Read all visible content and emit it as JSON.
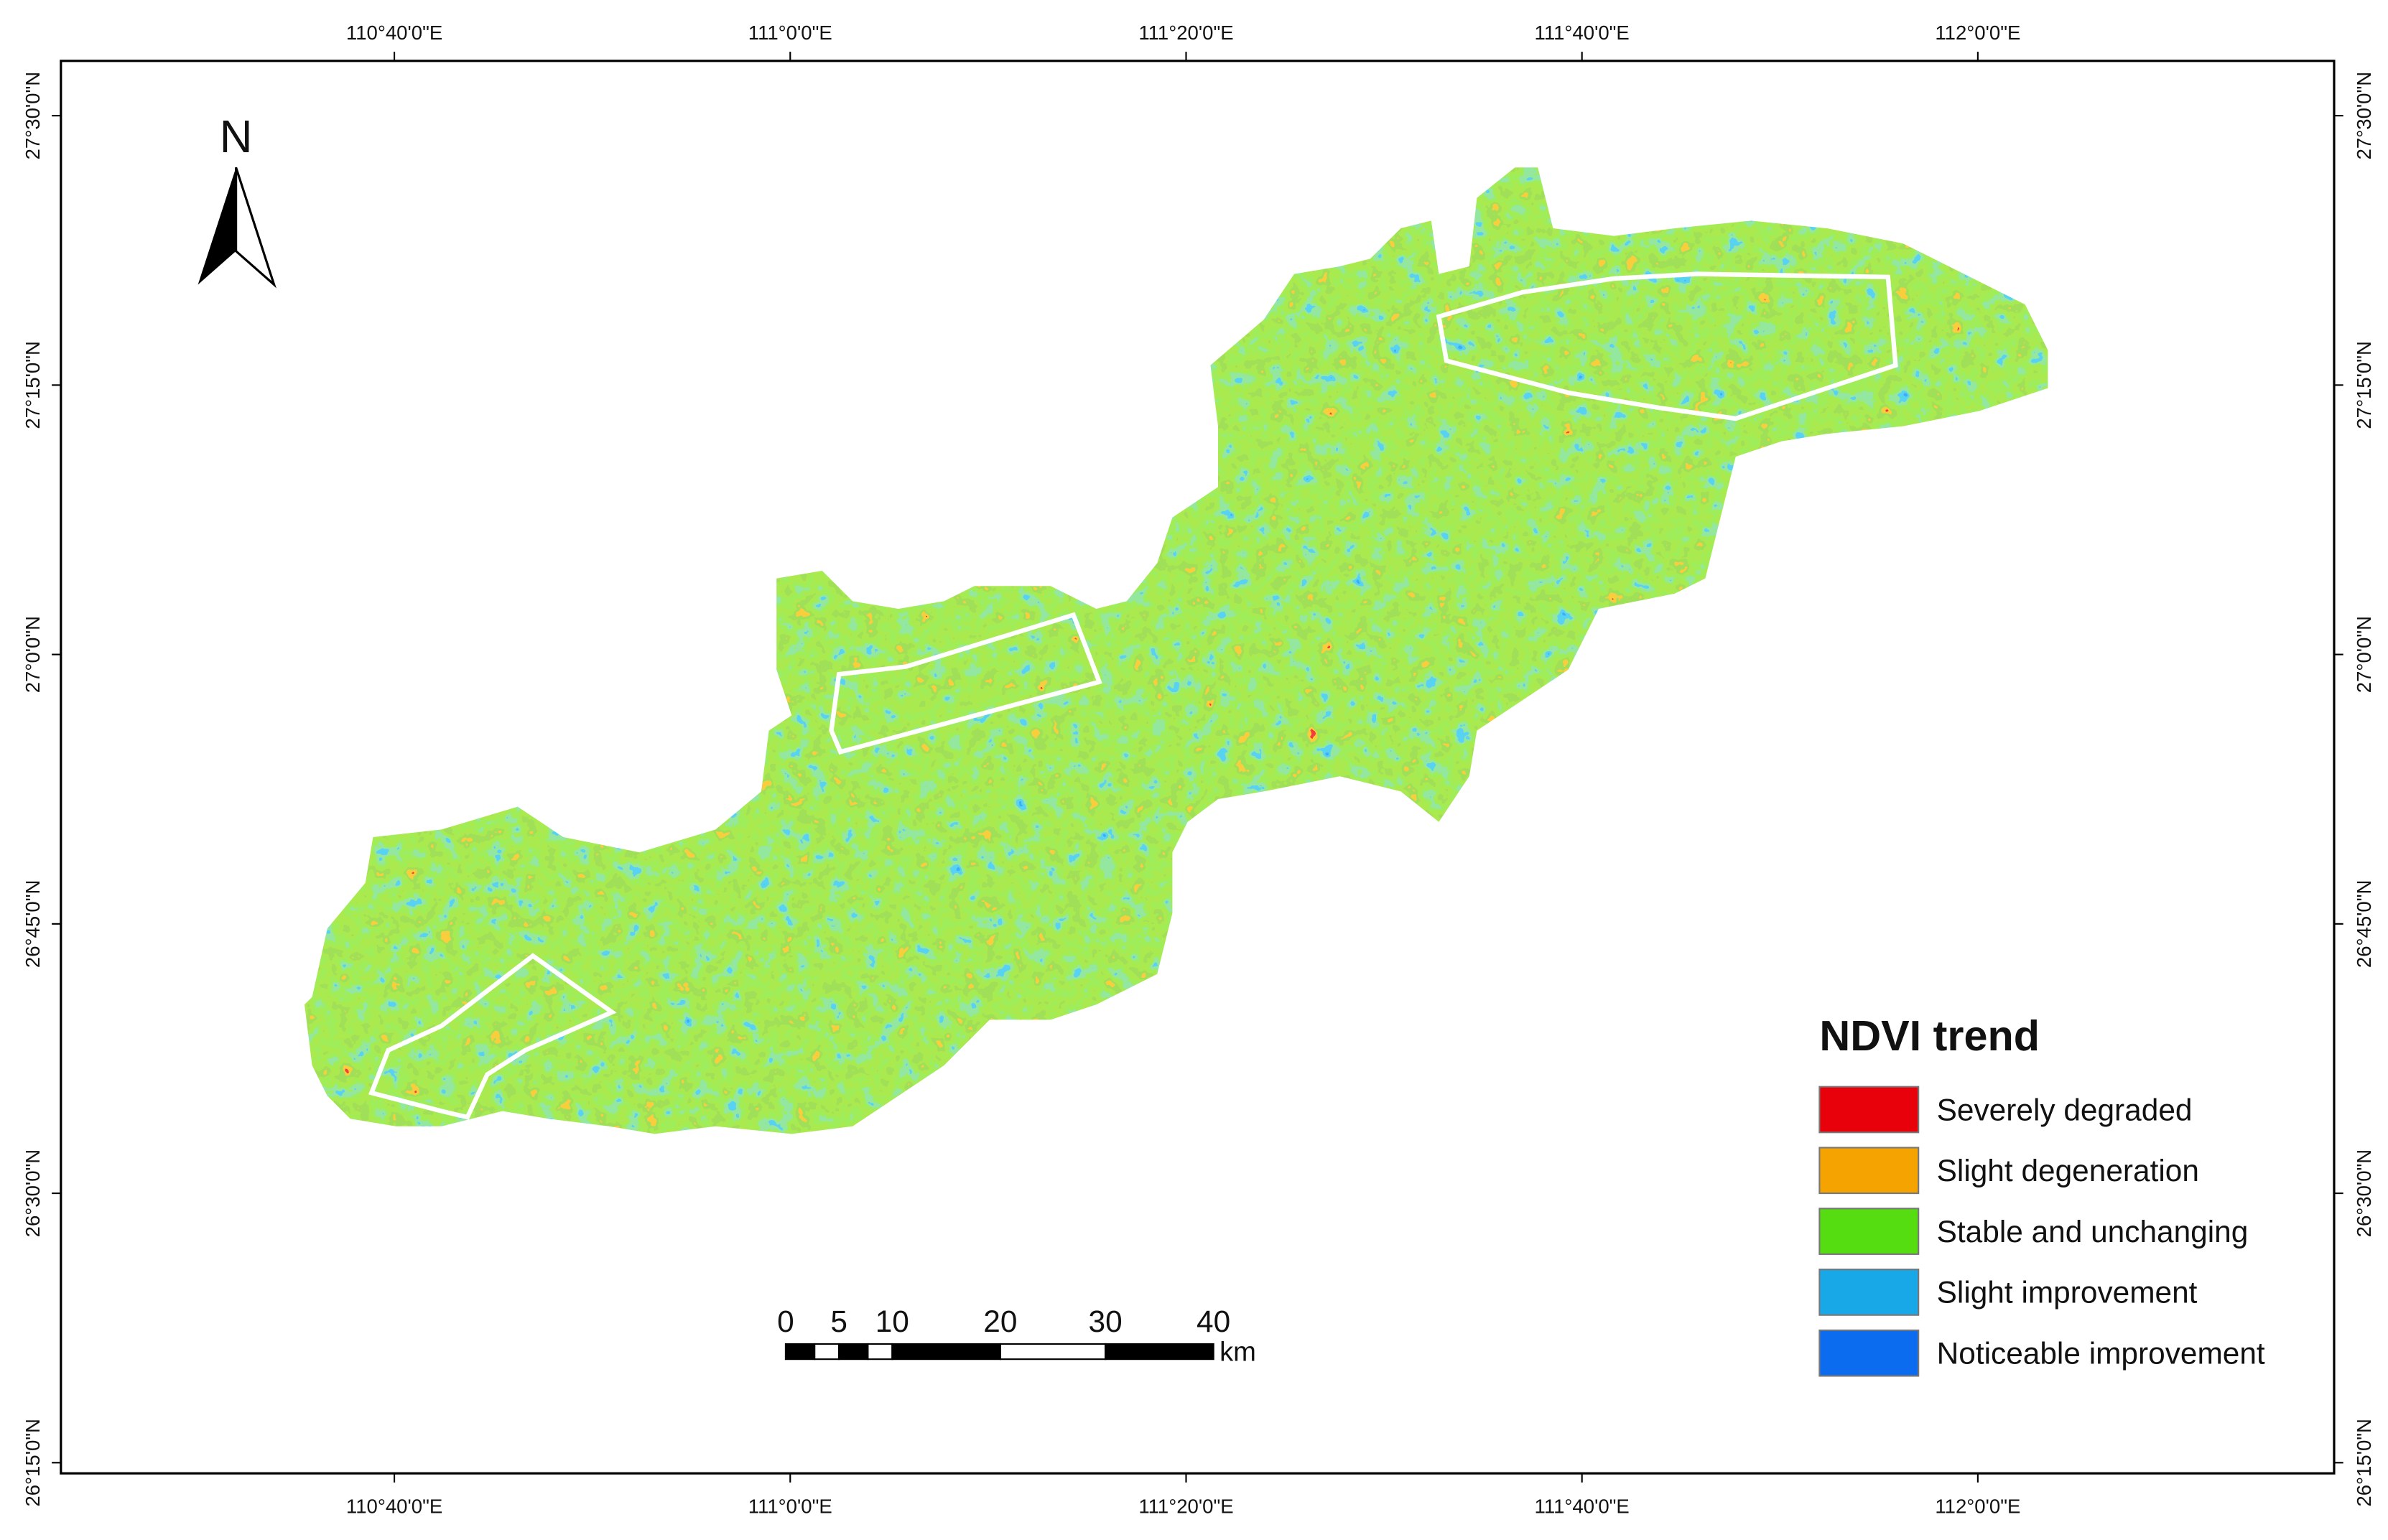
{
  "map": {
    "north_label": "N",
    "longitude_labels": [
      "110°40'0\"E",
      "111°0'0\"E",
      "111°20'0\"E",
      "111°40'0\"E",
      "112°0'0\"E"
    ],
    "latitude_labels": [
      "27°30'0\"N",
      "27°15'0\"N",
      "27°0'0\"N",
      "26°45'0\"N",
      "26°30'0\"N",
      "26°15'0\"N"
    ],
    "scale_bar": {
      "labels": [
        0,
        5,
        10,
        20,
        30,
        40
      ],
      "unit": "km"
    },
    "legend": {
      "title": "NDVI trend",
      "items": [
        {
          "label": "Severely degraded",
          "color": "#e8000b"
        },
        {
          "label": "Slight degeneration",
          "color": "#f5a300"
        },
        {
          "label": "Stable and unchanging",
          "color": "#55dd12"
        },
        {
          "label": "Slight improvement",
          "color": "#18a8e8"
        },
        {
          "label": "Noticeable improvement",
          "color": "#0b6cf0"
        }
      ]
    }
  }
}
